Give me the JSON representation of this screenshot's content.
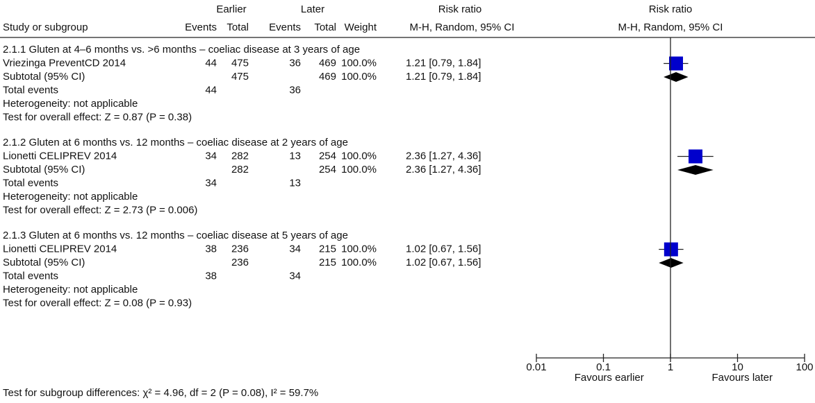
{
  "header": {
    "group_1": "Earlier",
    "group_2": "Later",
    "effect_1": "Risk ratio",
    "effect_2": "Risk ratio",
    "columns": [
      "Study or subgroup",
      "Events",
      "Total",
      "Events",
      "Total",
      "Weight",
      "M-H, Random, 95% CI",
      "M-H, Random, 95% CI"
    ]
  },
  "chart_data": {
    "type": "forest",
    "xscale": "log",
    "xlim": [
      0.01,
      100
    ],
    "xticks": [
      0.01,
      0.1,
      1,
      10,
      100
    ],
    "xlabels": [
      "Favours earlier",
      "Favours later"
    ],
    "color": "#0000cc",
    "subgroups": [
      {
        "title": "2.1.1 Gluten at 4–6 months vs. >6 months – coeliac disease at 3 years of age",
        "studies": [
          {
            "name": "Vriezinga PreventCD 2014",
            "e1": 44,
            "n1": 475,
            "e2": 36,
            "n2": 469,
            "weight": {
              "value": 100,
              "label": "100.0%"
            },
            "rr": 1.21,
            "lo": 0.79,
            "hi": 1.84,
            "ci_label": "1.21 [0.79, 1.84]"
          }
        ],
        "subtotal": {
          "name": "Subtotal (95% CI)",
          "n1": 475,
          "n2": 469,
          "weight": {
            "value": 100,
            "label": "100.0%"
          },
          "rr": 1.21,
          "lo": 0.79,
          "hi": 1.84,
          "ci_label": "1.21 [0.79, 1.84]"
        },
        "total_events": {
          "name": "Total events",
          "e1": 44,
          "e2": 36
        },
        "heterogeneity": "Heterogeneity: not applicable",
        "overall": "Test for overall effect: Z = 0.87 (P = 0.38)"
      },
      {
        "title": "2.1.2 Gluten at 6 months vs. 12 months – coeliac disease at 2 years of age",
        "studies": [
          {
            "name": "Lionetti CELIPREV 2014",
            "e1": 34,
            "n1": 282,
            "e2": 13,
            "n2": 254,
            "weight": {
              "value": 100,
              "label": "100.0%"
            },
            "rr": 2.36,
            "lo": 1.27,
            "hi": 4.36,
            "ci_label": "2.36 [1.27, 4.36]"
          }
        ],
        "subtotal": {
          "name": "Subtotal (95% CI)",
          "n1": 282,
          "n2": 254,
          "weight": {
            "value": 100,
            "label": "100.0%"
          },
          "rr": 2.36,
          "lo": 1.27,
          "hi": 4.36,
          "ci_label": "2.36 [1.27, 4.36]"
        },
        "total_events": {
          "name": "Total events",
          "e1": 34,
          "e2": 13
        },
        "heterogeneity": "Heterogeneity: not applicable",
        "overall": "Test for overall effect: Z = 2.73 (P = 0.006)"
      },
      {
        "title": "2.1.3 Gluten at 6 months vs. 12 months – coeliac disease at 5 years of age",
        "studies": [
          {
            "name": "Lionetti CELIPREV 2014",
            "e1": 38,
            "n1": 236,
            "e2": 34,
            "n2": 215,
            "weight": {
              "value": 100,
              "label": "100.0%"
            },
            "rr": 1.02,
            "lo": 0.67,
            "hi": 1.56,
            "ci_label": "1.02 [0.67, 1.56]"
          }
        ],
        "subtotal": {
          "name": "Subtotal (95% CI)",
          "n1": 236,
          "n2": 215,
          "weight": {
            "value": 100,
            "label": "100.0%"
          },
          "rr": 1.02,
          "lo": 0.67,
          "hi": 1.56,
          "ci_label": "1.02 [0.67, 1.56]"
        },
        "total_events": {
          "name": "Total events",
          "e1": 38,
          "e2": 34
        },
        "heterogeneity": "Heterogeneity: not applicable",
        "overall": "Test for overall effect: Z = 0.08 (P = 0.93)"
      }
    ],
    "subgroup_test": "Test for subgroup differences: χ² = 4.96, df = 2 (P = 0.08), I² = 59.7%"
  }
}
